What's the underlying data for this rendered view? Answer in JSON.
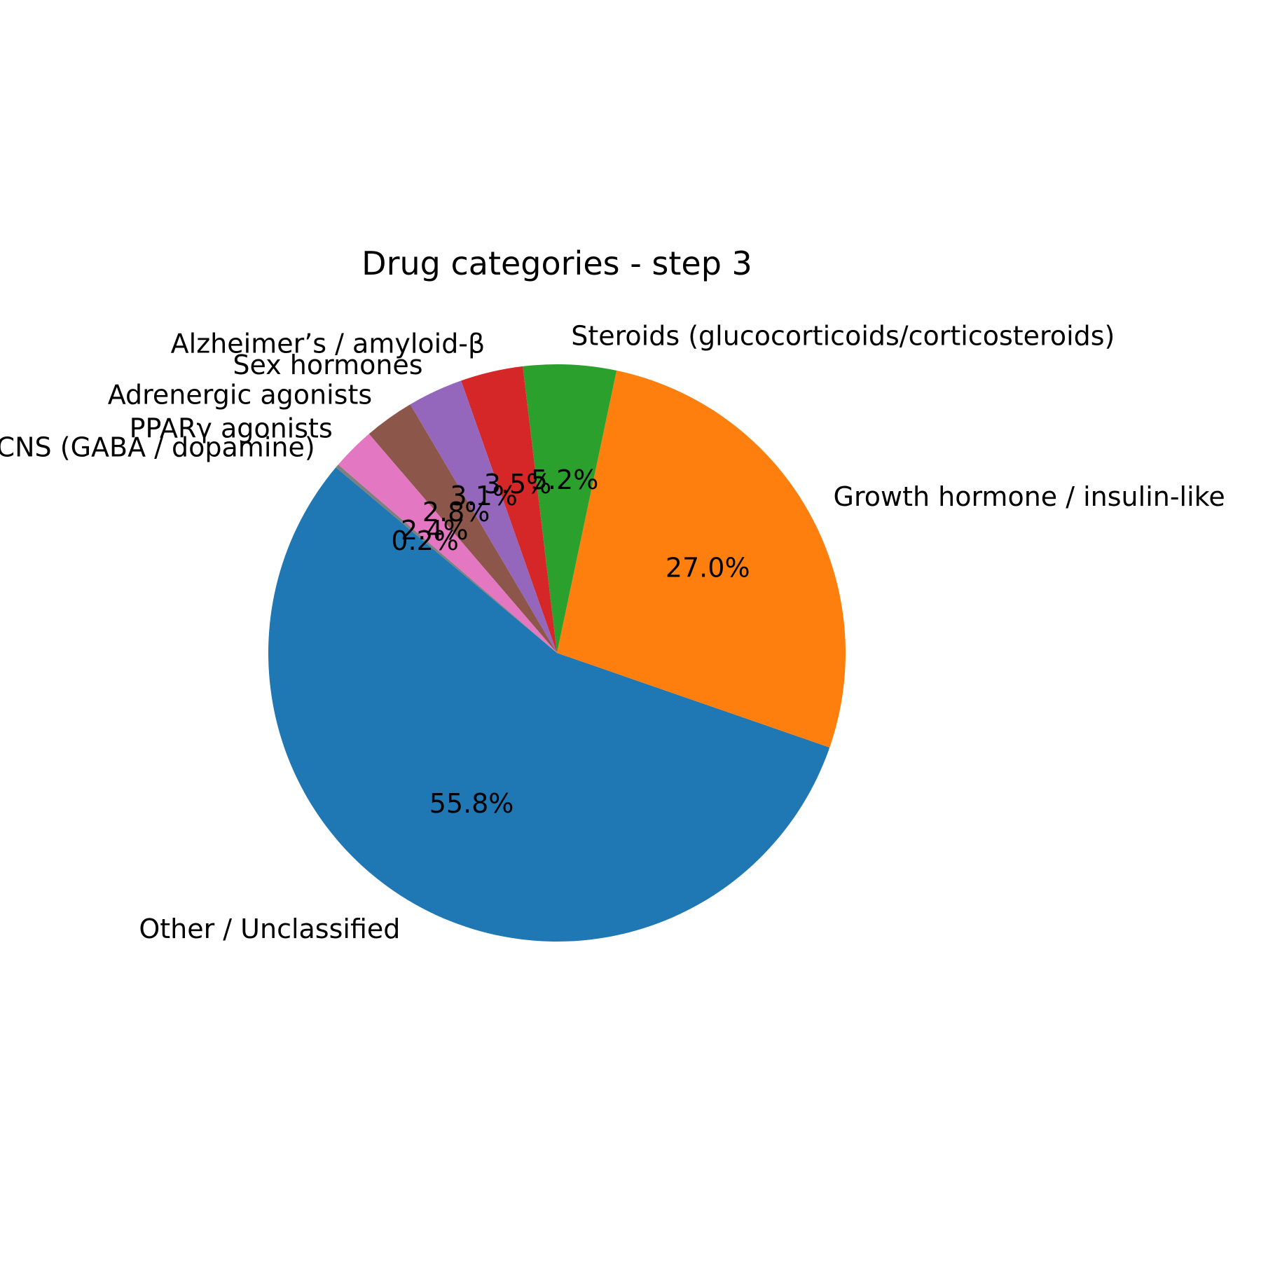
{
  "chart_data": {
    "type": "pie",
    "title": "Drug categories - step 3",
    "start_angle_deg": 140,
    "direction": "counterclockwise",
    "slices": [
      {
        "label": "Other / Unclassified",
        "value": 55.8,
        "pct_label": "55.8%",
        "color": "#1f77b4"
      },
      {
        "label": "Growth hormone / insulin-like",
        "value": 27.0,
        "pct_label": "27.0%",
        "color": "#ff7f0e"
      },
      {
        "label": "Steroids (glucocorticoids/corticosteroids)",
        "value": 5.2,
        "pct_label": "5.2%",
        "color": "#2ca02c"
      },
      {
        "label": "Alzheimer’s / amyloid-β",
        "value": 3.5,
        "pct_label": "3.5%",
        "color": "#d62728"
      },
      {
        "label": "Sex hormones",
        "value": 3.1,
        "pct_label": "3.1%",
        "color": "#9467bd"
      },
      {
        "label": "Adrenergic agonists",
        "value": 2.8,
        "pct_label": "2.8%",
        "color": "#8c564b"
      },
      {
        "label": "PPARγ agonists",
        "value": 2.4,
        "pct_label": "2.4%",
        "color": "#e377c2"
      },
      {
        "label": "CNS (GABA / dopamine)",
        "value": 0.2,
        "pct_label": "0.2%",
        "color": "#7f7f7f"
      }
    ]
  }
}
